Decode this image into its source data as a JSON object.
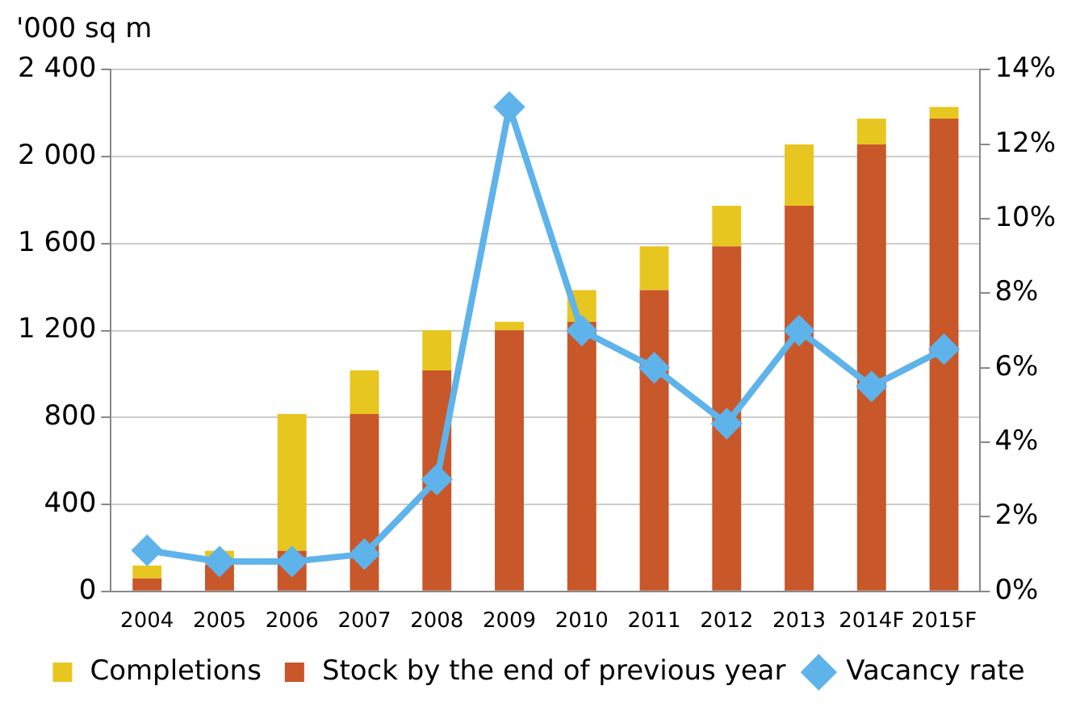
{
  "chart_data": {
    "type": "bar",
    "ylabel": "'000 sq m",
    "categories": [
      "2004",
      "2005",
      "2006",
      "2007",
      "2008",
      "2009",
      "2010",
      "2011",
      "2012",
      "2013",
      "2014F",
      "2015F"
    ],
    "stacked": true,
    "series": [
      {
        "name": "Stock by the end of previous year",
        "color": "#c8572a",
        "values": [
          60,
          122,
          187,
          816,
          1017,
          1201,
          1240,
          1386,
          1587,
          1774,
          2056,
          2175
        ]
      },
      {
        "name": "Completions",
        "color": "#e8c620",
        "values": [
          59,
          65,
          629,
          201,
          184,
          39,
          146,
          201,
          187,
          282,
          119,
          54
        ]
      },
      {
        "name": "Vacancy rate",
        "type": "line",
        "axis": "y2",
        "color": "#5eb3ea",
        "marker": "diamond",
        "values": [
          1.1,
          0.8,
          0.8,
          1.0,
          3.0,
          13,
          7,
          6,
          4.5,
          7,
          5.5,
          6.5
        ]
      }
    ],
    "ylim": [
      0,
      2400
    ],
    "yticks": [
      0,
      {
        "value": 400,
        "label": "400"
      },
      {
        "value": 800,
        "label": "800"
      },
      {
        "value": 1200,
        "label": "1 200"
      },
      {
        "value": 1600,
        "label": "1 600"
      },
      {
        "value": 2000,
        "label": "2 000"
      },
      {
        "value": 2400,
        "label": "2 400"
      }
    ],
    "y2lim": [
      0,
      14
    ],
    "y2ticks": [
      {
        "value": 0,
        "label": "0%"
      },
      {
        "value": 2,
        "label": "2%"
      },
      {
        "value": 4,
        "label": "4%"
      },
      {
        "value": 6,
        "label": "6%"
      },
      {
        "value": 8,
        "label": "8%"
      },
      {
        "value": 10,
        "label": "10%"
      },
      {
        "value": 12,
        "label": "12%"
      },
      {
        "value": 14,
        "label": "14%"
      }
    ],
    "grid": "y",
    "legend": "bottom"
  }
}
